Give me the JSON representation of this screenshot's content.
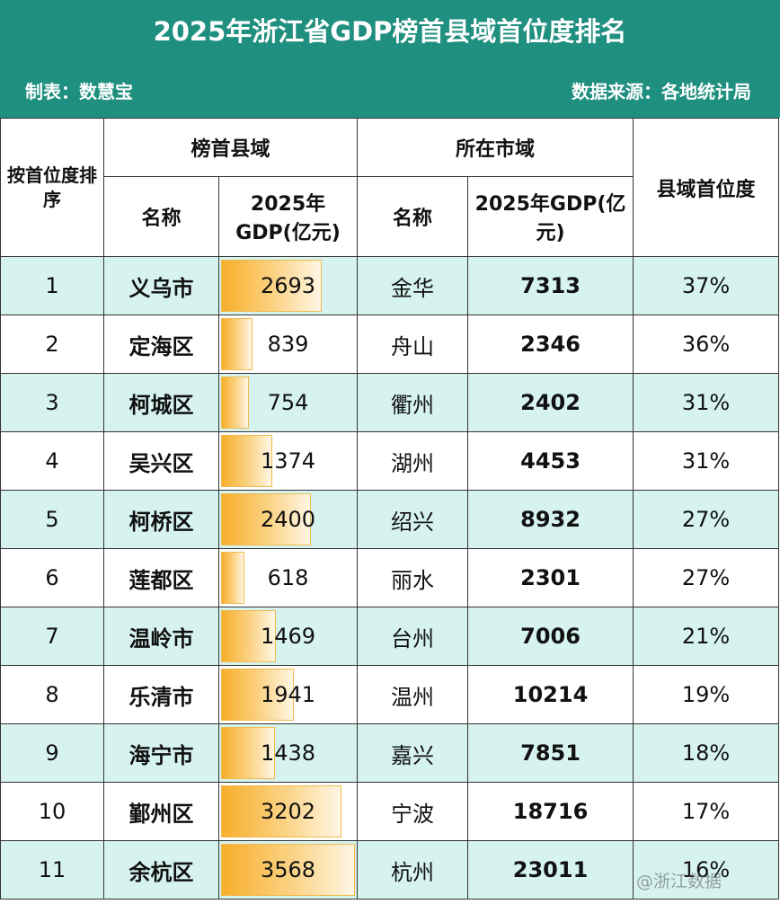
{
  "header": {
    "title": "2025年浙江省GDP榜首县域首位度排名",
    "maker": "制表：数慧宝",
    "source": "数据来源：各地统计局"
  },
  "columns": {
    "rank": "按首位度排序",
    "county_group": "榜首县域",
    "city_group": "所在市域",
    "name": "名称",
    "gdp": "2025年GDP(亿元)",
    "primacy": "县域首位度"
  },
  "rows": [
    {
      "rank": "1",
      "county": "义乌市",
      "county_gdp": 2693,
      "city": "金华",
      "city_gdp": "7313",
      "primacy": "37%"
    },
    {
      "rank": "2",
      "county": "定海区",
      "county_gdp": 839,
      "city": "舟山",
      "city_gdp": "2346",
      "primacy": "36%"
    },
    {
      "rank": "3",
      "county": "柯城区",
      "county_gdp": 754,
      "city": "衢州",
      "city_gdp": "2402",
      "primacy": "31%"
    },
    {
      "rank": "4",
      "county": "吴兴区",
      "county_gdp": 1374,
      "city": "湖州",
      "city_gdp": "4453",
      "primacy": "31%"
    },
    {
      "rank": "5",
      "county": "柯桥区",
      "county_gdp": 2400,
      "city": "绍兴",
      "city_gdp": "8932",
      "primacy": "27%"
    },
    {
      "rank": "6",
      "county": "莲都区",
      "county_gdp": 618,
      "city": "丽水",
      "city_gdp": "2301",
      "primacy": "27%"
    },
    {
      "rank": "7",
      "county": "温岭市",
      "county_gdp": 1469,
      "city": "台州",
      "city_gdp": "7006",
      "primacy": "21%"
    },
    {
      "rank": "8",
      "county": "乐清市",
      "county_gdp": 1941,
      "city": "温州",
      "city_gdp": "10214",
      "primacy": "19%"
    },
    {
      "rank": "9",
      "county": "海宁市",
      "county_gdp": 1438,
      "city": "嘉兴",
      "city_gdp": "7851",
      "primacy": "18%"
    },
    {
      "rank": "10",
      "county": "鄞州区",
      "county_gdp": 3202,
      "city": "宁波",
      "city_gdp": "18716",
      "primacy": "17%"
    },
    {
      "rank": "11",
      "county": "余杭区",
      "county_gdp": 3568,
      "city": "杭州",
      "city_gdp": "23011",
      "primacy": "16%"
    }
  ],
  "bar_max": 3568,
  "colors": {
    "header_bg": "#1f8f7f",
    "row_alt": "#d6f3ef",
    "bar": "#f7ae2a"
  },
  "watermark": "@浙江数据"
}
